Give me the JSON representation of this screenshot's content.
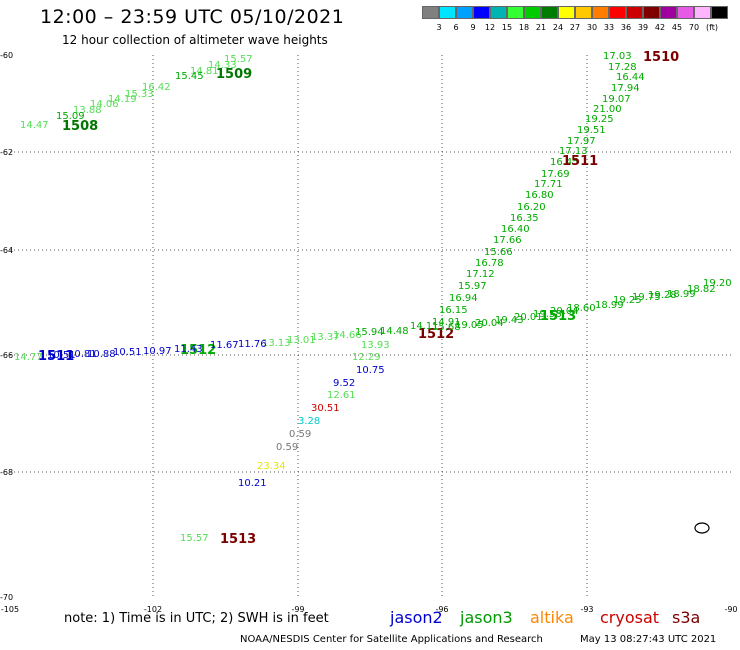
{
  "header": {
    "title": "12:00 – 23:59 UTC 05/10/2021",
    "subtitle": "12 hour collection of altimeter wave heights"
  },
  "legend": {
    "unit": "(ft)",
    "swatches": [
      {
        "color": "#808080",
        "label": ""
      },
      {
        "color": "#00e5ff",
        "label": "3"
      },
      {
        "color": "#00a0ff",
        "label": "6"
      },
      {
        "color": "#0000ff",
        "label": "9"
      },
      {
        "color": "#00b4b4",
        "label": "12"
      },
      {
        "color": "#33ff33",
        "label": "15"
      },
      {
        "color": "#00cc00",
        "label": "18"
      },
      {
        "color": "#007d00",
        "label": "21"
      },
      {
        "color": "#ffff00",
        "label": "24"
      },
      {
        "color": "#ffc800",
        "label": "27"
      },
      {
        "color": "#ff7d00",
        "label": "30"
      },
      {
        "color": "#ff0000",
        "label": "33"
      },
      {
        "color": "#cc0000",
        "label": "36"
      },
      {
        "color": "#800000",
        "label": "39"
      },
      {
        "color": "#a000a0",
        "label": "42"
      },
      {
        "color": "#e65ae6",
        "label": "45"
      },
      {
        "color": "#ffb4ff",
        "label": "70"
      },
      {
        "color": "#000000",
        "label": ""
      }
    ]
  },
  "map": {
    "lon_ticks": [
      "-105",
      "-102",
      "-99",
      "-96",
      "-93",
      "-90"
    ],
    "lat_ticks": [
      "-60",
      "-62",
      "-64",
      "-66",
      "-68",
      "-70"
    ],
    "colors": {
      "light_green": "#55dd55",
      "green": "#00aa00",
      "dark_green": "#007700",
      "blue": "#0000cc",
      "dark_red": "#7a0000",
      "red": "#cc0000",
      "cyan": "#00cccc",
      "gray": "#777777",
      "yellow": "#e6e600"
    },
    "labels": [
      {
        "text": "15.57",
        "color": "light_green"
      },
      {
        "text": "14.33",
        "color": "light_green"
      },
      {
        "text": "14.81",
        "color": "light_green"
      },
      {
        "text": "15.45",
        "color": "green"
      },
      {
        "text": "16.42",
        "color": "light_green"
      },
      {
        "text": "15.33",
        "color": "light_green"
      },
      {
        "text": "1509",
        "color": "dark_green",
        "bold": true
      },
      {
        "text": "14.19",
        "color": "light_green"
      },
      {
        "text": "14.06",
        "color": "light_green"
      },
      {
        "text": "13.88",
        "color": "light_green"
      },
      {
        "text": "15.09",
        "color": "green"
      },
      {
        "text": "14.47",
        "color": "light_green"
      },
      {
        "text": "1508",
        "color": "dark_green",
        "bold": true
      },
      {
        "text": "17.03",
        "color": "green"
      },
      {
        "text": "17.28",
        "color": "green"
      },
      {
        "text": "16.44",
        "color": "green"
      },
      {
        "text": "17.94",
        "color": "green"
      },
      {
        "text": "19.07",
        "color": "green"
      },
      {
        "text": "21.00",
        "color": "green"
      },
      {
        "text": "19.25",
        "color": "green"
      },
      {
        "text": "19.51",
        "color": "green"
      },
      {
        "text": "17.97",
        "color": "green"
      },
      {
        "text": "17.13",
        "color": "green"
      },
      {
        "text": "16.45",
        "color": "green"
      },
      {
        "text": "17.69",
        "color": "green"
      },
      {
        "text": "17.71",
        "color": "green"
      },
      {
        "text": "16.80",
        "color": "green"
      },
      {
        "text": "16.20",
        "color": "green"
      },
      {
        "text": "16.35",
        "color": "green"
      },
      {
        "text": "16.40",
        "color": "green"
      },
      {
        "text": "17.66",
        "color": "green"
      },
      {
        "text": "15.66",
        "color": "green"
      },
      {
        "text": "16.78",
        "color": "green"
      },
      {
        "text": "17.12",
        "color": "green"
      },
      {
        "text": "15.97",
        "color": "green"
      },
      {
        "text": "16.94",
        "color": "green"
      },
      {
        "text": "16.15",
        "color": "green"
      },
      {
        "text": "14.91",
        "color": "green"
      },
      {
        "text": "1510",
        "color": "dark_red",
        "bold": true
      },
      {
        "text": "1511",
        "color": "dark_red",
        "bold": true
      },
      {
        "text": "1512",
        "color": "dark_red",
        "bold": true
      },
      {
        "text": "1513",
        "color": "dark_red",
        "bold": true
      },
      {
        "text": "1513",
        "color": "green",
        "bold": true
      },
      {
        "text": "1512",
        "color": "green",
        "bold": true
      },
      {
        "text": "1511",
        "color": "blue",
        "bold": true
      },
      {
        "text": "19.20",
        "color": "green"
      },
      {
        "text": "18.82",
        "color": "green"
      },
      {
        "text": "18.99",
        "color": "green"
      },
      {
        "text": "19.28",
        "color": "green"
      },
      {
        "text": "19.75",
        "color": "green"
      },
      {
        "text": "19.25",
        "color": "green"
      },
      {
        "text": "18.99",
        "color": "green"
      },
      {
        "text": "18.60",
        "color": "green"
      },
      {
        "text": "20.04",
        "color": "green"
      },
      {
        "text": "19.58",
        "color": "green"
      },
      {
        "text": "20.01",
        "color": "green"
      },
      {
        "text": "19.43",
        "color": "green"
      },
      {
        "text": "20.04",
        "color": "green"
      },
      {
        "text": "19.05",
        "color": "green"
      },
      {
        "text": "15.68",
        "color": "green"
      },
      {
        "text": "15.94",
        "color": "green"
      },
      {
        "text": "14.48",
        "color": "green"
      },
      {
        "text": "14.11",
        "color": "green"
      },
      {
        "text": "14.66",
        "color": "light_green"
      },
      {
        "text": "13.37",
        "color": "light_green"
      },
      {
        "text": "13.01",
        "color": "light_green"
      },
      {
        "text": "13.13",
        "color": "light_green"
      },
      {
        "text": "11.76",
        "color": "blue"
      },
      {
        "text": "11.67",
        "color": "blue"
      },
      {
        "text": "11.43",
        "color": "blue"
      },
      {
        "text": "10.97",
        "color": "blue"
      },
      {
        "text": "10.51",
        "color": "blue"
      },
      {
        "text": "10.88",
        "color": "blue"
      },
      {
        "text": "10.81",
        "color": "blue"
      },
      {
        "text": "10.51",
        "color": "blue"
      },
      {
        "text": "14.77",
        "color": "light_green"
      },
      {
        "text": "13.93",
        "color": "light_green"
      },
      {
        "text": "12.29",
        "color": "light_green"
      },
      {
        "text": "10.75",
        "color": "blue"
      },
      {
        "text": "9.52",
        "color": "blue"
      },
      {
        "text": "12.61",
        "color": "light_green"
      },
      {
        "text": "30.51",
        "color": "red"
      },
      {
        "text": "3.28",
        "color": "cyan"
      },
      {
        "text": "0.59",
        "color": "gray"
      },
      {
        "text": "0.59",
        "color": "gray"
      },
      {
        "text": "23.34",
        "color": "yellow"
      },
      {
        "text": "10.21",
        "color": "blue"
      },
      {
        "text": "15.57",
        "color": "light_green"
      }
    ]
  },
  "footer": {
    "note": "note:  1) Time is in UTC;  2) SWH is in feet",
    "satellites": [
      {
        "name": "jason2",
        "color": "#0000cc"
      },
      {
        "name": "jason3",
        "color": "#009900"
      },
      {
        "name": "altika",
        "color": "#ff8800"
      },
      {
        "name": "cryosat",
        "color": "#cc0000"
      },
      {
        "name": "s3a",
        "color": "#7a0000"
      }
    ],
    "credit": "NOAA/NESDIS Center for Satellite Applications and Research",
    "timestamp": "May 13 08:27:43 UTC 2021"
  }
}
